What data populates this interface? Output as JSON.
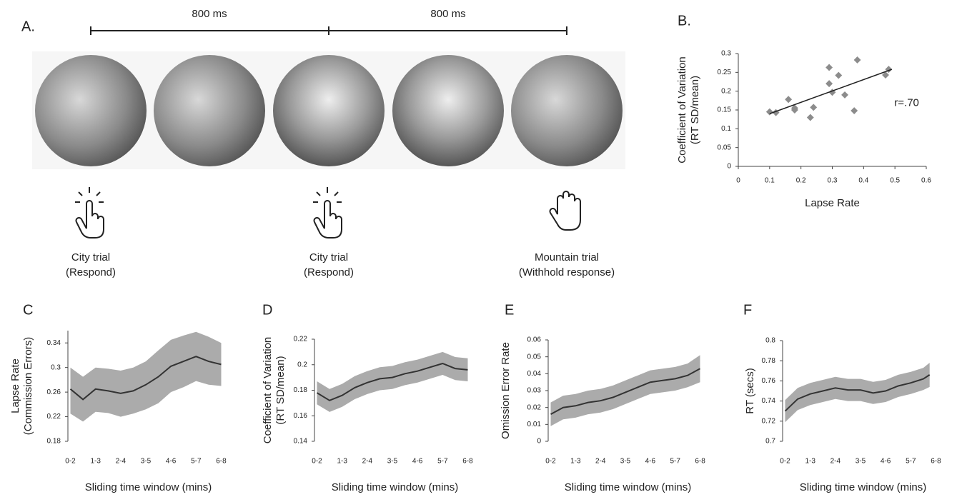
{
  "panel_a": {
    "label": "A.",
    "durations": [
      "800 ms",
      "800 ms"
    ],
    "trials": [
      {
        "name": "City trial",
        "note": "(Respond)"
      },
      {
        "name": "City trial",
        "note": "(Respond)"
      },
      {
        "name": "Mountain trial",
        "note": "(Withhold response)"
      }
    ]
  },
  "chart_data": [
    {
      "type": "scatter",
      "panel": "B.",
      "xlabel": "Lapse Rate",
      "ylabel": [
        "Coefficient of Variation",
        "(RT SD/mean)"
      ],
      "annotation": "r=.70",
      "x": [
        0.1,
        0.12,
        0.16,
        0.18,
        0.18,
        0.23,
        0.24,
        0.29,
        0.29,
        0.3,
        0.32,
        0.34,
        0.37,
        0.38,
        0.47,
        0.48
      ],
      "values": [
        0.145,
        0.143,
        0.178,
        0.155,
        0.15,
        0.13,
        0.157,
        0.263,
        0.22,
        0.197,
        0.242,
        0.19,
        0.148,
        0.283,
        0.243,
        0.258
      ],
      "trend": {
        "x": [
          0.1,
          0.49
        ],
        "y": [
          0.14,
          0.258
        ]
      },
      "color": "#8c8c8c",
      "xlim": [
        0,
        0.6
      ],
      "ylim": [
        0,
        0.3
      ],
      "xticks": [
        0,
        0.1,
        0.2,
        0.3,
        0.4,
        0.5,
        0.6
      ],
      "yticks": [
        0,
        0.05,
        0.1,
        0.15,
        0.2,
        0.25,
        0.3
      ]
    },
    {
      "type": "line",
      "panel": "C",
      "xlabel": "Sliding time window (mins)",
      "ylabel": [
        "Lapse Rate",
        "(Commission Errors)"
      ],
      "x": [
        0,
        0.5,
        1,
        1.5,
        2,
        2.5,
        3,
        3.5,
        4,
        4.5,
        5,
        5.5,
        6
      ],
      "values": [
        0.265,
        0.248,
        0.265,
        0.262,
        0.258,
        0.262,
        0.272,
        0.285,
        0.302,
        0.31,
        0.318,
        0.31,
        0.305
      ],
      "lower": [
        0.225,
        0.212,
        0.228,
        0.226,
        0.22,
        0.225,
        0.232,
        0.242,
        0.26,
        0.268,
        0.278,
        0.272,
        0.27
      ],
      "upper": [
        0.3,
        0.285,
        0.3,
        0.298,
        0.295,
        0.3,
        0.31,
        0.328,
        0.345,
        0.352,
        0.358,
        0.35,
        0.34
      ],
      "color": "#333333",
      "band_color": "#ababab",
      "ylim": [
        0.18,
        0.36
      ],
      "yticks": [
        0.18,
        0.22,
        0.26,
        0.3,
        0.34
      ],
      "xlim": [
        -0.1,
        6.3
      ],
      "xticks": [
        {
          "value": 0,
          "label": "0-2"
        },
        {
          "value": 1,
          "label": "1-3"
        },
        {
          "value": 2,
          "label": "2-4"
        },
        {
          "value": 3,
          "label": "3-5"
        },
        {
          "value": 4,
          "label": "4-6"
        },
        {
          "value": 5,
          "label": "5-7"
        },
        {
          "value": 6,
          "label": "6-8"
        }
      ]
    },
    {
      "type": "line",
      "panel": "D",
      "xlabel": "Sliding time window (mins)",
      "ylabel": [
        "Coefficient of Variation",
        "(RT SD/mean)"
      ],
      "x": [
        0,
        0.5,
        1,
        1.5,
        2,
        2.5,
        3,
        3.5,
        4,
        4.5,
        5,
        5.5,
        6
      ],
      "values": [
        0.178,
        0.172,
        0.176,
        0.182,
        0.186,
        0.189,
        0.19,
        0.193,
        0.195,
        0.198,
        0.201,
        0.197,
        0.196
      ],
      "lower": [
        0.169,
        0.163,
        0.167,
        0.173,
        0.177,
        0.18,
        0.181,
        0.184,
        0.186,
        0.189,
        0.192,
        0.188,
        0.187
      ],
      "upper": [
        0.187,
        0.181,
        0.185,
        0.191,
        0.195,
        0.198,
        0.199,
        0.202,
        0.204,
        0.207,
        0.21,
        0.206,
        0.205
      ],
      "color": "#333333",
      "band_color": "#ababab",
      "ylim": [
        0.14,
        0.22
      ],
      "yticks": [
        0.14,
        0.16,
        0.18,
        0.2,
        0.22
      ],
      "xlim": [
        -0.1,
        6.3
      ],
      "xticks": [
        {
          "value": 0,
          "label": "0-2"
        },
        {
          "value": 1,
          "label": "1-3"
        },
        {
          "value": 2,
          "label": "2-4"
        },
        {
          "value": 3,
          "label": "3-5"
        },
        {
          "value": 4,
          "label": "4-6"
        },
        {
          "value": 5,
          "label": "5-7"
        },
        {
          "value": 6,
          "label": "6-8"
        }
      ]
    },
    {
      "type": "line",
      "panel": "E",
      "xlabel": "Sliding time window (mins)",
      "ylabel": [
        "Omission Error Rate"
      ],
      "x": [
        0,
        0.5,
        1,
        1.5,
        2,
        2.5,
        3,
        3.5,
        4,
        4.5,
        5,
        5.5,
        6
      ],
      "values": [
        0.016,
        0.02,
        0.021,
        0.023,
        0.024,
        0.026,
        0.029,
        0.032,
        0.035,
        0.036,
        0.037,
        0.039,
        0.043
      ],
      "lower": [
        0.009,
        0.013,
        0.014,
        0.016,
        0.017,
        0.019,
        0.022,
        0.025,
        0.028,
        0.029,
        0.03,
        0.032,
        0.035
      ],
      "upper": [
        0.023,
        0.027,
        0.028,
        0.03,
        0.031,
        0.033,
        0.036,
        0.039,
        0.042,
        0.043,
        0.044,
        0.046,
        0.051
      ],
      "color": "#333333",
      "band_color": "#ababab",
      "ylim": [
        0,
        0.06
      ],
      "yticks": [
        0,
        0.01,
        0.02,
        0.03,
        0.04,
        0.05,
        0.06
      ],
      "xlim": [
        -0.1,
        6.3
      ],
      "xticks": [
        {
          "value": 0,
          "label": "0-2"
        },
        {
          "value": 1,
          "label": "1-3"
        },
        {
          "value": 2,
          "label": "2-4"
        },
        {
          "value": 3,
          "label": "3-5"
        },
        {
          "value": 4,
          "label": "4-6"
        },
        {
          "value": 5,
          "label": "5-7"
        },
        {
          "value": 6,
          "label": "6-8"
        }
      ]
    },
    {
      "type": "line",
      "panel": "F",
      "xlabel": "Sliding time window (mins)",
      "ylabel": [
        "RT (secs)"
      ],
      "x": [
        0,
        0.5,
        1,
        1.5,
        2,
        2.5,
        3,
        3.5,
        4,
        4.5,
        5,
        5.5,
        5.75
      ],
      "values": [
        0.73,
        0.742,
        0.747,
        0.75,
        0.753,
        0.751,
        0.751,
        0.748,
        0.75,
        0.755,
        0.758,
        0.762,
        0.766
      ],
      "lower": [
        0.719,
        0.731,
        0.736,
        0.739,
        0.742,
        0.74,
        0.74,
        0.737,
        0.739,
        0.744,
        0.747,
        0.751,
        0.754
      ],
      "upper": [
        0.741,
        0.753,
        0.758,
        0.761,
        0.764,
        0.762,
        0.762,
        0.759,
        0.761,
        0.766,
        0.769,
        0.773,
        0.778
      ],
      "color": "#333333",
      "band_color": "#ababab",
      "ylim": [
        0.7,
        0.8
      ],
      "yticks": [
        0.7,
        0.72,
        0.74,
        0.76,
        0.78,
        0.8
      ],
      "xlim": [
        -0.1,
        6.3
      ],
      "xticks": [
        {
          "value": 0,
          "label": "0-2"
        },
        {
          "value": 1,
          "label": "1-3"
        },
        {
          "value": 2,
          "label": "2-4"
        },
        {
          "value": 3,
          "label": "3-5"
        },
        {
          "value": 4,
          "label": "4-6"
        },
        {
          "value": 5,
          "label": "5-7"
        },
        {
          "value": 6,
          "label": "6-8"
        }
      ]
    }
  ]
}
